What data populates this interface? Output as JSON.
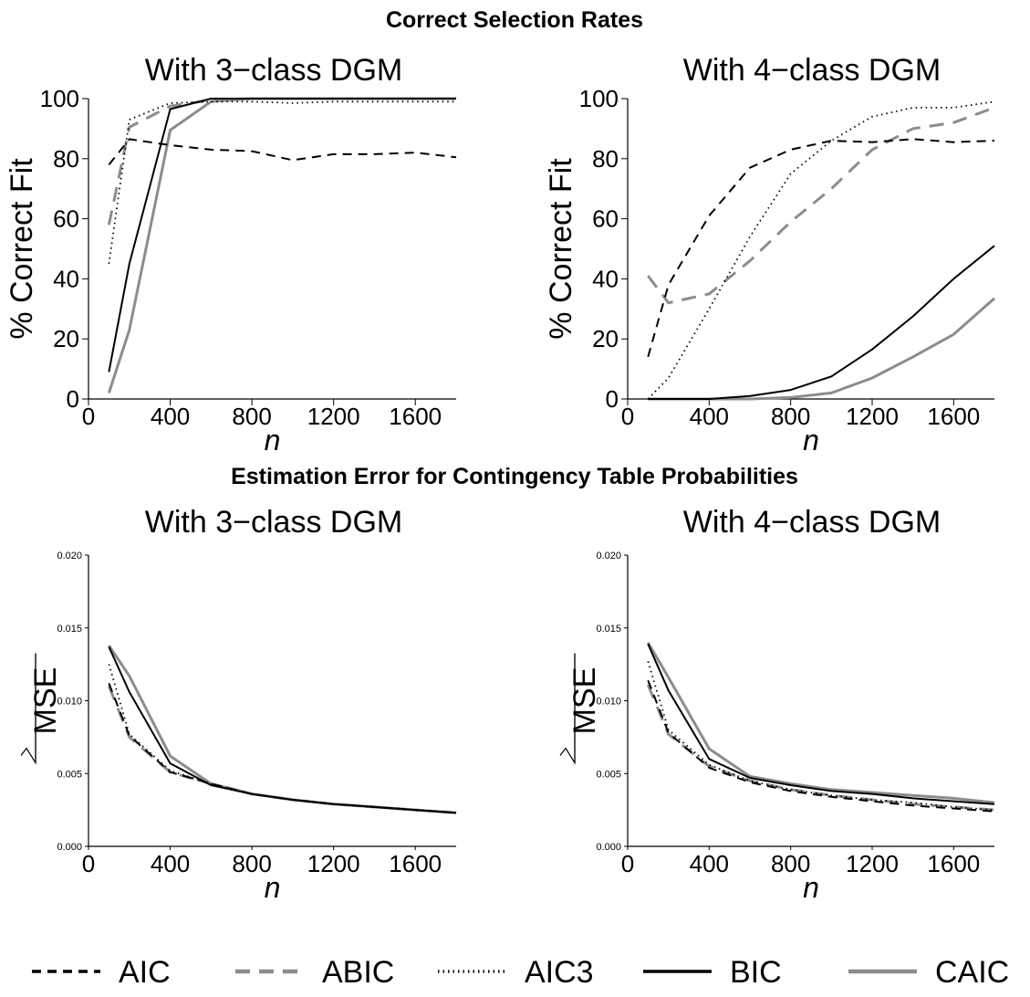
{
  "section_titles": {
    "top": "Correct Selection Rates",
    "bottom": "Estimation Error for Contingency Table Probabilities"
  },
  "legend": {
    "AIC": "AIC",
    "ABIC": "ABIC",
    "AIC3": "AIC3",
    "BIC": "BIC",
    "CAIC": "CAIC"
  },
  "styles": {
    "AIC": {
      "color": "#000000",
      "dash": "dashed"
    },
    "ABIC": {
      "color": "#8c8c8c",
      "dash": "long-dashed"
    },
    "AIC3": {
      "color": "#000000",
      "dash": "dotted"
    },
    "BIC": {
      "color": "#000000",
      "dash": "solid"
    },
    "CAIC": {
      "color": "#8c8c8c",
      "dash": "solid"
    }
  },
  "chart_data": [
    {
      "type": "line",
      "title": "With 3−class DGM",
      "xlabel": "n",
      "ylabel": "% Correct Fit",
      "xlim": [
        0,
        1800
      ],
      "ylim": [
        0,
        100
      ],
      "xticks": [
        "0",
        "400",
        "800",
        "1200",
        "1600"
      ],
      "yticks": [
        "0",
        "20",
        "40",
        "60",
        "80",
        "100"
      ],
      "x": [
        100,
        200,
        400,
        600,
        800,
        1000,
        1200,
        1400,
        1600,
        1800
      ],
      "series": [
        {
          "name": "AIC",
          "values": [
            78,
            86.5,
            84.5,
            83,
            82.5,
            79.5,
            81.5,
            81.5,
            82,
            80.5
          ]
        },
        {
          "name": "ABIC",
          "values": [
            58,
            90.5,
            97.5,
            99.5,
            100,
            100,
            100,
            100,
            100,
            100
          ]
        },
        {
          "name": "AIC3",
          "values": [
            45,
            93,
            98.5,
            99,
            99,
            98.5,
            99,
            99,
            99,
            99
          ]
        },
        {
          "name": "BIC",
          "values": [
            9,
            45,
            96.5,
            100,
            100,
            100,
            100,
            100,
            100,
            100
          ]
        },
        {
          "name": "CAIC",
          "values": [
            2,
            23,
            89.5,
            99,
            100,
            100,
            100,
            100,
            100,
            100
          ]
        }
      ]
    },
    {
      "type": "line",
      "title": "With 4−class DGM",
      "xlabel": "n",
      "ylabel": "% Correct Fit",
      "xlim": [
        0,
        1800
      ],
      "ylim": [
        0,
        100
      ],
      "xticks": [
        "0",
        "400",
        "800",
        "1200",
        "1600"
      ],
      "yticks": [
        "0",
        "20",
        "40",
        "60",
        "80",
        "100"
      ],
      "x": [
        100,
        200,
        400,
        600,
        800,
        1000,
        1200,
        1400,
        1600,
        1800
      ],
      "series": [
        {
          "name": "AIC",
          "values": [
            14,
            38,
            61,
            77,
            83,
            86,
            85.5,
            86.5,
            85.5,
            86
          ]
        },
        {
          "name": "ABIC",
          "values": [
            41,
            32,
            35,
            46,
            59,
            70,
            83,
            90,
            92,
            97
          ]
        },
        {
          "name": "AIC3",
          "values": [
            0,
            7,
            30,
            54,
            75,
            86,
            94,
            97,
            97,
            99
          ]
        },
        {
          "name": "BIC",
          "values": [
            0,
            0,
            0,
            1,
            3,
            7.5,
            16.5,
            27.5,
            40,
            51
          ]
        },
        {
          "name": "CAIC",
          "values": [
            0,
            0,
            0,
            0,
            0.5,
            2,
            7,
            14,
            21.5,
            33.5
          ]
        }
      ]
    },
    {
      "type": "line",
      "title": "With 3−class DGM",
      "xlabel": "n",
      "ylabel": "MSE",
      "xlim": [
        0,
        1800
      ],
      "ylim": [
        0,
        0.02
      ],
      "xticks": [
        "0",
        "400",
        "800",
        "1200",
        "1600"
      ],
      "yticks": [
        "0.000",
        "0.005",
        "0.010",
        "0.015",
        "0.020"
      ],
      "x": [
        100,
        200,
        400,
        600,
        800,
        1000,
        1200,
        1400,
        1600,
        1800
      ],
      "series": [
        {
          "name": "AIC",
          "values": [
            0.0112,
            0.0076,
            0.0051,
            0.0043,
            0.0036,
            0.0032,
            0.0029,
            0.0027,
            0.0025,
            0.0023
          ]
        },
        {
          "name": "ABIC",
          "values": [
            0.011,
            0.0075,
            0.0051,
            0.0043,
            0.0036,
            0.0032,
            0.0029,
            0.0027,
            0.0025,
            0.0023
          ]
        },
        {
          "name": "AIC3",
          "values": [
            0.0125,
            0.0077,
            0.0052,
            0.0043,
            0.0036,
            0.0032,
            0.0029,
            0.0027,
            0.0025,
            0.0023
          ]
        },
        {
          "name": "BIC",
          "values": [
            0.0137,
            0.0106,
            0.0057,
            0.0042,
            0.0036,
            0.0032,
            0.0029,
            0.0027,
            0.0025,
            0.0023
          ]
        },
        {
          "name": "CAIC",
          "values": [
            0.0138,
            0.0117,
            0.0062,
            0.0043,
            0.0036,
            0.0032,
            0.0029,
            0.0027,
            0.0025,
            0.0023
          ]
        }
      ]
    },
    {
      "type": "line",
      "title": "With 4−class DGM",
      "xlabel": "n",
      "ylabel": "MSE",
      "xlim": [
        0,
        1800
      ],
      "ylim": [
        0,
        0.02
      ],
      "xticks": [
        "0",
        "400",
        "800",
        "1200",
        "1600"
      ],
      "yticks": [
        "0.000",
        "0.005",
        "0.010",
        "0.015",
        "0.020"
      ],
      "x": [
        100,
        200,
        400,
        600,
        800,
        1000,
        1200,
        1400,
        1600,
        1800
      ],
      "series": [
        {
          "name": "AIC",
          "values": [
            0.0114,
            0.0078,
            0.0054,
            0.0044,
            0.0038,
            0.0034,
            0.0031,
            0.0028,
            0.0026,
            0.0024
          ]
        },
        {
          "name": "ABIC",
          "values": [
            0.0111,
            0.0077,
            0.0055,
            0.0045,
            0.0039,
            0.0035,
            0.0032,
            0.0029,
            0.0027,
            0.0025
          ]
        },
        {
          "name": "AIC3",
          "values": [
            0.0127,
            0.008,
            0.0056,
            0.0045,
            0.0039,
            0.0035,
            0.0032,
            0.003,
            0.0027,
            0.0025
          ]
        },
        {
          "name": "BIC",
          "values": [
            0.0139,
            0.0107,
            0.006,
            0.0047,
            0.0042,
            0.0038,
            0.0036,
            0.0033,
            0.0031,
            0.0029
          ]
        },
        {
          "name": "CAIC",
          "values": [
            0.014,
            0.0116,
            0.0067,
            0.0048,
            0.0043,
            0.0039,
            0.0037,
            0.0035,
            0.0033,
            0.003
          ]
        }
      ]
    }
  ]
}
